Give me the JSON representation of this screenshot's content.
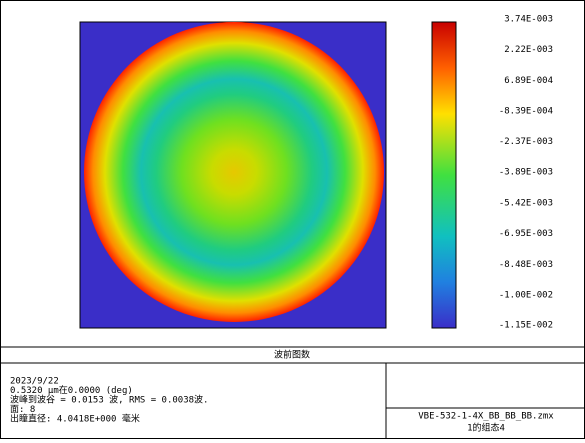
{
  "colorbar": {
    "lim": [
      -0.0115,
      0.00374
    ],
    "ticks": [
      {
        "value": 0.00374,
        "label": "3.74E-003"
      },
      {
        "value": 0.00222,
        "label": "2.22E-003"
      },
      {
        "value": 0.000689,
        "label": "6.89E-004"
      },
      {
        "value": -0.000839,
        "label": "-8.39E-004"
      },
      {
        "value": -0.00237,
        "label": "-2.37E-003"
      },
      {
        "value": -0.00389,
        "label": "-3.89E-003"
      },
      {
        "value": -0.00542,
        "label": "-5.42E-003"
      },
      {
        "value": -0.00695,
        "label": "-6.95E-003"
      },
      {
        "value": -0.00848,
        "label": "-8.48E-003"
      },
      {
        "value": -0.01,
        "label": "-1.00E-002"
      },
      {
        "value": -0.0115,
        "label": "-1.15E-002"
      }
    ]
  },
  "panel": {
    "title": "波前图数",
    "info": [
      "2023/9/22",
      "0.5320 μm在0.0000 (deg)",
      "波峰到波谷 = 0.0153 波, RMS = 0.0038波.",
      "面: 8",
      "出瞳直径: 4.0418E+000 毫米"
    ],
    "file": "VBE-532-1-4X_BB_BB_BB.zmx",
    "config": "1的组态4"
  }
}
